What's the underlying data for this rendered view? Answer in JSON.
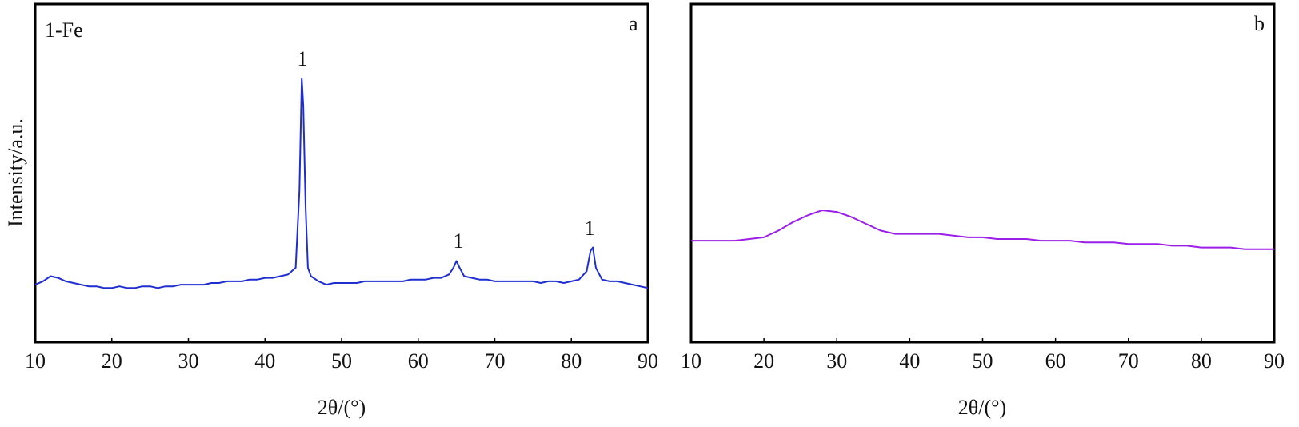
{
  "chart_data": [
    {
      "type": "line",
      "label": "a",
      "annotation": "1-Fe",
      "peak_labels": [
        "1",
        "1",
        "1"
      ],
      "y_label": "Intensity/a.u.",
      "x_label": "2θ/(°)",
      "color": "#1f2fcf",
      "xlim": [
        10,
        90
      ],
      "xticks": [
        10,
        20,
        30,
        40,
        50,
        60,
        70,
        80,
        90
      ],
      "ylim": [
        0,
        100
      ],
      "x": [
        10,
        11,
        12,
        13,
        14,
        15,
        16,
        17,
        18,
        19,
        20,
        21,
        22,
        23,
        24,
        25,
        26,
        27,
        28,
        29,
        30,
        31,
        32,
        33,
        34,
        35,
        36,
        37,
        38,
        39,
        40,
        41,
        42,
        43,
        44,
        44.5,
        44.8,
        45,
        45.3,
        45.6,
        46,
        47,
        48,
        49,
        50,
        51,
        52,
        53,
        54,
        55,
        56,
        57,
        58,
        59,
        60,
        61,
        62,
        63,
        64,
        64.6,
        65,
        65.4,
        66,
        67,
        68,
        69,
        70,
        71,
        72,
        73,
        74,
        75,
        76,
        77,
        78,
        79,
        80,
        81,
        82,
        82.5,
        82.8,
        83.2,
        84,
        85,
        86,
        87,
        88,
        89,
        90
      ],
      "values": [
        17,
        18,
        19.5,
        19,
        18,
        17.5,
        17,
        16.5,
        16.5,
        16,
        16,
        16.5,
        16,
        16,
        16.5,
        16.5,
        16,
        16.5,
        16.5,
        17,
        17,
        17,
        17,
        17.5,
        17.5,
        18,
        18,
        18,
        18.5,
        18.5,
        19,
        19,
        19.5,
        20,
        22,
        45,
        78,
        70,
        40,
        22,
        19.5,
        18,
        17,
        17.5,
        17.5,
        17.5,
        17.5,
        18,
        18,
        18,
        18,
        18,
        18,
        18.5,
        18.5,
        18.5,
        19,
        19,
        20,
        22,
        24,
        22,
        19.5,
        19,
        18.5,
        18.5,
        18,
        18,
        18,
        18,
        18,
        18,
        17.5,
        18,
        18,
        17.5,
        18,
        18.5,
        21,
        27,
        28,
        22,
        18.5,
        18,
        18,
        17.5,
        17,
        16.5,
        16
      ]
    },
    {
      "type": "line",
      "label": "b",
      "x_label": "2θ/(°)",
      "color": "#9b1fe8",
      "xlim": [
        10,
        90
      ],
      "xticks": [
        10,
        20,
        30,
        40,
        50,
        60,
        70,
        80,
        90
      ],
      "ylim": [
        0,
        100
      ],
      "x": [
        10,
        12,
        14,
        16,
        18,
        20,
        22,
        24,
        26,
        28,
        30,
        32,
        34,
        36,
        38,
        40,
        42,
        44,
        46,
        48,
        50,
        52,
        54,
        56,
        58,
        60,
        62,
        64,
        66,
        68,
        70,
        72,
        74,
        76,
        78,
        80,
        82,
        84,
        86,
        88,
        90
      ],
      "values": [
        30,
        30,
        30,
        30,
        30.5,
        31,
        33,
        35.5,
        37.5,
        39,
        38.5,
        37,
        35,
        33,
        32,
        32,
        32,
        32,
        31.5,
        31,
        31,
        30.5,
        30.5,
        30.5,
        30,
        30,
        30,
        29.5,
        29.5,
        29.5,
        29,
        29,
        29,
        28.5,
        28.5,
        28,
        28,
        28,
        27.5,
        27.5,
        27.5
      ]
    }
  ]
}
